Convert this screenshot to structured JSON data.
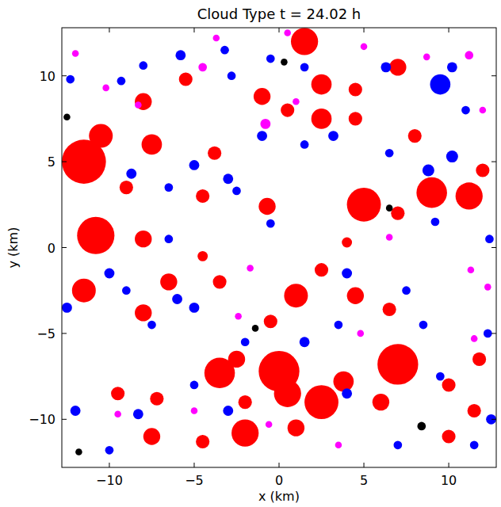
{
  "chart_data": {
    "type": "scatter",
    "title": "Cloud Type t =  24.02 h",
    "x_label": "x (km)",
    "y_label": "y (km)",
    "xlim": [
      -12.8,
      12.8
    ],
    "ylim": [
      -12.8,
      12.8
    ],
    "xticks": [
      {
        "value": -10,
        "label": "−10"
      },
      {
        "value": -5,
        "label": "−5"
      },
      0,
      5,
      10
    ],
    "yticks": [
      {
        "value": -10,
        "label": "−10"
      },
      {
        "value": -5,
        "label": "−5"
      },
      0,
      5,
      10
    ],
    "grid": false,
    "series": [
      {
        "color": "#ff0000",
        "marker": "circle",
        "x": [
          -11.5,
          -10.5,
          -10.8,
          -11.5,
          -8,
          -9,
          -7.5,
          -8,
          -5.5,
          -3.8,
          -1,
          1.5,
          2.5,
          0.5,
          2.5,
          4.5,
          4.5,
          7,
          8,
          5,
          9,
          11.2,
          12,
          7,
          -0.7,
          -4.5,
          -3.5,
          -6.5,
          -8,
          -4.5,
          1,
          2.5,
          -0.5,
          4,
          6.5,
          0,
          0.5,
          -3.5,
          -2.5,
          2.5,
          3.8,
          7,
          6,
          -2,
          1,
          -4.5,
          -9.5,
          -7.2,
          -7.5,
          -2,
          10,
          11.5,
          11.8,
          10,
          4.5
        ],
        "values": [
          5,
          6.5,
          0.7,
          -2.5,
          0.5,
          3.5,
          6,
          8.5,
          9.8,
          5.5,
          8.8,
          12,
          9.5,
          8,
          7.5,
          9.2,
          7.5,
          10.5,
          6.5,
          2.5,
          3.2,
          3,
          4.5,
          2,
          2.4,
          3,
          -2,
          -2,
          -3.8,
          -0.5,
          -2.8,
          -1.3,
          -4.3,
          0.3,
          -3.6,
          -7.2,
          -8.5,
          -7.3,
          -6.5,
          -9,
          -7.8,
          -6.8,
          -9,
          -10.8,
          -10.5,
          -11.3,
          -8.5,
          -8.8,
          -11,
          -9,
          -8,
          -9.5,
          -6.5,
          -11,
          -2.8
        ],
        "sizes": [
          1.3,
          0.7,
          1.1,
          0.7,
          0.5,
          0.4,
          0.6,
          0.5,
          0.4,
          0.4,
          0.5,
          0.8,
          0.6,
          0.4,
          0.6,
          0.4,
          0.4,
          0.5,
          0.4,
          1.0,
          0.9,
          0.8,
          0.4,
          0.4,
          0.5,
          0.4,
          0.4,
          0.5,
          0.5,
          0.3,
          0.7,
          0.4,
          0.4,
          0.3,
          0.4,
          1.2,
          0.8,
          0.9,
          0.5,
          1.0,
          0.6,
          1.2,
          0.5,
          0.8,
          0.5,
          0.4,
          0.4,
          0.4,
          0.5,
          0.4,
          0.4,
          0.4,
          0.4,
          0.4,
          0.5
        ]
      },
      {
        "color": "#0000ff",
        "marker": "circle",
        "x": [
          -12.5,
          -12,
          -10,
          -9,
          -6,
          -5,
          -7.5,
          -8.3,
          -10,
          -3,
          -5,
          -2,
          1.5,
          3.5,
          8.5,
          4,
          7,
          11.5,
          12.5,
          9.5,
          12.3,
          4,
          9.2,
          12.4,
          8.8,
          6.5,
          10.2,
          11,
          9.5,
          10.2,
          3.2,
          1.5,
          -1,
          -3,
          -2.5,
          -5,
          -6.5,
          -8.7,
          -9.3,
          -8,
          -5.8,
          -3.2,
          -2.8,
          -0.5,
          1.5,
          6.3,
          -12.3,
          -6.5,
          -0.5,
          7.5
        ],
        "values": [
          -3.5,
          -9.5,
          -1.5,
          -2.5,
          -3,
          -3.5,
          -4.5,
          -9.7,
          -11.8,
          -9.5,
          -8,
          -5.5,
          -5.5,
          -4.5,
          -4.5,
          -8.5,
          -11.5,
          -11.5,
          -10,
          -7.5,
          -5,
          -1.5,
          1.5,
          0.5,
          4.5,
          5.5,
          5.3,
          8,
          9.5,
          10.5,
          6.5,
          6,
          6.5,
          4,
          3.3,
          4.8,
          3.5,
          4.3,
          9.7,
          10.6,
          11.2,
          11.5,
          10,
          11,
          10.5,
          10.5,
          9.8,
          0.5,
          1.4,
          -2.5
        ],
        "sizes": [
          0.3,
          0.3,
          0.3,
          0.25,
          0.3,
          0.3,
          0.25,
          0.3,
          0.25,
          0.3,
          0.25,
          0.25,
          0.3,
          0.25,
          0.25,
          0.3,
          0.25,
          0.25,
          0.3,
          0.25,
          0.25,
          0.3,
          0.25,
          0.25,
          0.35,
          0.25,
          0.35,
          0.25,
          0.6,
          0.3,
          0.3,
          0.25,
          0.3,
          0.3,
          0.25,
          0.3,
          0.25,
          0.3,
          0.25,
          0.25,
          0.3,
          0.25,
          0.25,
          0.25,
          0.25,
          0.3,
          0.25,
          0.25,
          0.25,
          0.25
        ]
      },
      {
        "color": "#ff00ff",
        "marker": "circle",
        "x": [
          -12,
          -4.5,
          -3.7,
          -0.8,
          0.5,
          1,
          5,
          8.7,
          11.2,
          12,
          -8.3,
          -5,
          -2.4,
          4.8,
          11.5,
          11.3,
          12.3,
          -1.7,
          3.5,
          -9.5,
          -0.6,
          6.5,
          -10.2
        ],
        "values": [
          11.3,
          10.5,
          12.2,
          7.2,
          12.5,
          8.5,
          11.7,
          11.1,
          11.2,
          8,
          8.3,
          -9.5,
          -4,
          -5,
          -5.3,
          -1.3,
          -2.3,
          -1.2,
          -11.5,
          -9.7,
          -10.3,
          0.6,
          9.3
        ],
        "sizes": [
          0.2,
          0.25,
          0.2,
          0.3,
          0.2,
          0.2,
          0.2,
          0.2,
          0.25,
          0.2,
          0.2,
          0.2,
          0.2,
          0.2,
          0.2,
          0.2,
          0.2,
          0.2,
          0.2,
          0.2,
          0.2,
          0.2,
          0.2
        ]
      },
      {
        "color": "#000000",
        "marker": "circle",
        "x": [
          -12.5,
          0.3,
          6.5,
          -1.4,
          8.4,
          -11.8
        ],
        "values": [
          7.6,
          10.8,
          2.3,
          -4.7,
          -10.4,
          -11.9
        ],
        "sizes": [
          0.2,
          0.2,
          0.2,
          0.2,
          0.25,
          0.2
        ]
      }
    ]
  }
}
